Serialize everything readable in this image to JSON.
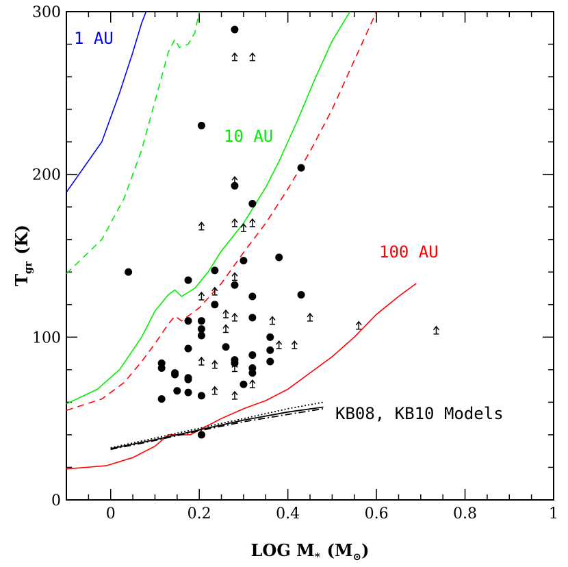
{
  "chart_data": {
    "type": "scatter",
    "xlabel": "LOG M",
    "xlabel_sub": "*",
    "xlabel_unit": "(M",
    "xlabel_unit_sub": "⊙",
    "xlabel_close": ")",
    "ylabel": "T",
    "ylabel_sub": "gr",
    "ylabel_unit": "(K)",
    "xlim": [
      -0.1,
      1.0
    ],
    "ylim": [
      0,
      300
    ],
    "x_ticks": [
      0,
      0.2,
      0.4,
      0.6,
      0.8,
      1
    ],
    "x_tick_labels": [
      "0",
      "0.2",
      "0.4",
      "0.6",
      "0.8",
      "1"
    ],
    "y_ticks": [
      0,
      100,
      200,
      300
    ],
    "y_tick_labels": [
      "0",
      "100",
      "200",
      "300"
    ],
    "colors": {
      "1au": "#0000ff",
      "10au": "#00ee00",
      "100au": "#ff0000",
      "points": "#000000"
    },
    "annotations": [
      {
        "text": "1 AU",
        "color": "#0000ff"
      },
      {
        "text": "10 AU",
        "color": "#00ee00"
      },
      {
        "text": "100 AU",
        "color": "#ff0000"
      },
      {
        "text": "KB08, KB10 Models",
        "color": "#000000"
      }
    ],
    "series": [
      {
        "color": "#0000ff",
        "style": "solid",
        "x": [
          -0.1,
          -0.02,
          0.02,
          0.05,
          0.07,
          0.08
        ],
        "y": [
          189,
          220,
          250,
          275,
          293,
          300
        ]
      },
      {
        "color": "#00ee00",
        "style": "dashed",
        "x": [
          -0.1,
          -0.02,
          0.03,
          0.07,
          0.1,
          0.13,
          0.145,
          0.155,
          0.175,
          0.19,
          0.2
        ],
        "y": [
          139,
          160,
          185,
          215,
          245,
          275,
          283,
          278,
          280,
          287,
          300
        ]
      },
      {
        "color": "#00ee00",
        "style": "solid",
        "x": [
          -0.1,
          -0.03,
          0.02,
          0.07,
          0.1,
          0.13,
          0.145,
          0.16,
          0.19,
          0.22,
          0.25,
          0.3,
          0.35,
          0.38,
          0.42,
          0.46,
          0.5,
          0.54
        ],
        "y": [
          59,
          68,
          80,
          100,
          116,
          126,
          129,
          125,
          130,
          140,
          153,
          170,
          192,
          208,
          232,
          258,
          282,
          300
        ]
      },
      {
        "color": "#ff0000",
        "style": "dashed",
        "x": [
          -0.1,
          -0.02,
          0.03,
          0.07,
          0.1,
          0.13,
          0.145,
          0.16,
          0.2,
          0.25,
          0.3,
          0.35,
          0.4,
          0.45,
          0.5,
          0.55,
          0.6
        ],
        "y": [
          55,
          62,
          72,
          85,
          96,
          108,
          113,
          110,
          118,
          133,
          152,
          170,
          191,
          214,
          240,
          270,
          300
        ]
      },
      {
        "color": "#ff0000",
        "style": "solid",
        "x": [
          -0.1,
          -0.01,
          0.05,
          0.1,
          0.13,
          0.155,
          0.18,
          0.2,
          0.25,
          0.3,
          0.35,
          0.4,
          0.45,
          0.5,
          0.55,
          0.6,
          0.65,
          0.69
        ],
        "y": [
          19,
          21,
          26,
          33,
          40,
          40,
          40,
          43,
          50,
          56,
          61,
          68,
          78,
          88,
          100,
          114,
          125,
          133
        ]
      },
      {
        "color": "#000000",
        "style": "solid",
        "x": [
          0,
          0.1,
          0.2,
          0.3,
          0.4,
          0.48
        ],
        "y": [
          31.5,
          37,
          43,
          49,
          54,
          57
        ]
      },
      {
        "color": "#000000",
        "style": "dotted",
        "x": [
          0,
          0.1,
          0.2,
          0.3,
          0.4,
          0.48
        ],
        "y": [
          32,
          38,
          44,
          50,
          56,
          60
        ]
      },
      {
        "color": "#000000",
        "style": "dashdot",
        "x": [
          0,
          0.1,
          0.2,
          0.3,
          0.4,
          0.48
        ],
        "y": [
          31,
          36.5,
          42.5,
          48,
          52.5,
          56
        ]
      }
    ],
    "points_filled": [
      [
        0.04,
        140
      ],
      [
        0.115,
        84
      ],
      [
        0.115,
        81
      ],
      [
        0.115,
        62
      ],
      [
        0.145,
        78
      ],
      [
        0.145,
        77
      ],
      [
        0.15,
        67
      ],
      [
        0.175,
        135
      ],
      [
        0.175,
        110
      ],
      [
        0.175,
        93
      ],
      [
        0.175,
        75
      ],
      [
        0.175,
        74
      ],
      [
        0.175,
        66
      ],
      [
        0.205,
        230
      ],
      [
        0.205,
        110
      ],
      [
        0.205,
        105
      ],
      [
        0.205,
        101
      ],
      [
        0.205,
        64
      ],
      [
        0.205,
        40
      ],
      [
        0.235,
        141
      ],
      [
        0.235,
        120
      ],
      [
        0.26,
        94
      ],
      [
        0.28,
        289
      ],
      [
        0.28,
        193
      ],
      [
        0.28,
        132
      ],
      [
        0.28,
        86
      ],
      [
        0.28,
        84
      ],
      [
        0.3,
        147
      ],
      [
        0.3,
        71
      ],
      [
        0.32,
        182
      ],
      [
        0.32,
        125
      ],
      [
        0.32,
        112
      ],
      [
        0.32,
        89
      ],
      [
        0.32,
        81
      ],
      [
        0.32,
        78
      ],
      [
        0.36,
        100
      ],
      [
        0.36,
        92
      ],
      [
        0.36,
        85
      ],
      [
        0.38,
        149
      ],
      [
        0.43,
        204
      ],
      [
        0.43,
        126
      ]
    ],
    "points_lower_limit": [
      [
        0.205,
        168
      ],
      [
        0.205,
        125
      ],
      [
        0.205,
        85
      ],
      [
        0.235,
        128
      ],
      [
        0.235,
        83
      ],
      [
        0.235,
        67
      ],
      [
        0.26,
        114
      ],
      [
        0.26,
        105
      ],
      [
        0.28,
        272
      ],
      [
        0.28,
        196
      ],
      [
        0.28,
        170
      ],
      [
        0.28,
        137
      ],
      [
        0.28,
        112
      ],
      [
        0.28,
        81
      ],
      [
        0.28,
        64
      ],
      [
        0.3,
        167
      ],
      [
        0.32,
        272
      ],
      [
        0.32,
        170
      ],
      [
        0.32,
        71
      ],
      [
        0.365,
        110
      ],
      [
        0.38,
        95
      ],
      [
        0.415,
        95
      ],
      [
        0.45,
        112
      ],
      [
        0.56,
        107
      ],
      [
        0.735,
        104
      ]
    ]
  }
}
